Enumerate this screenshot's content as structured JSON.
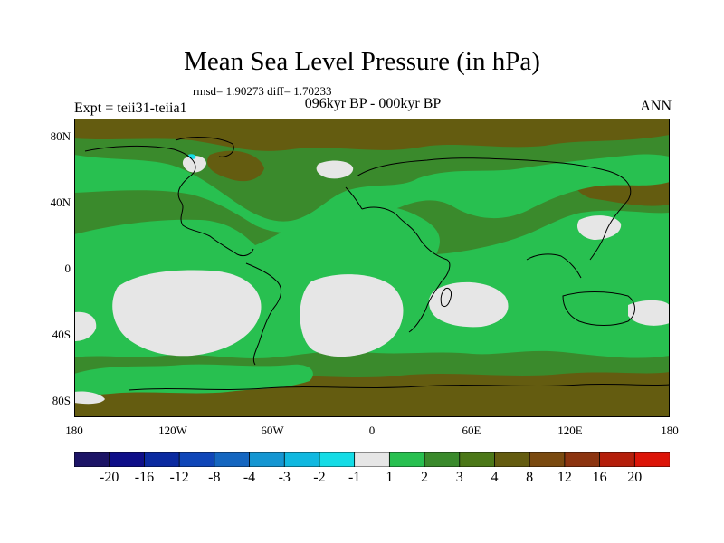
{
  "title": "Mean Sea Level Pressure (in hPa)",
  "stats": "rmsd= 1.90273 diff= 1.70233",
  "experiment": "Expt = teii31-teiia1",
  "period": "096kyr BP - 000kyr BP",
  "season": "ANN",
  "lat_ticks": [
    "80N",
    "40N",
    "0",
    "40S",
    "80S"
  ],
  "lon_ticks": [
    "180",
    "120W",
    "60W",
    "0",
    "60E",
    "120E",
    "180"
  ],
  "colorbar": {
    "labels": [
      "-20",
      "-16",
      "-12",
      "-8",
      "-4",
      "-3",
      "-2",
      "-1",
      "1",
      "2",
      "3",
      "4",
      "8",
      "12",
      "16",
      "20"
    ],
    "colors": [
      "#1c1466",
      "#0e0e88",
      "#0a2aa0",
      "#0f46b8",
      "#1466c0",
      "#1496d2",
      "#10b8e0",
      "#14dce6",
      "#e6e6e6",
      "#28c050",
      "#3a8a2c",
      "#4c7818",
      "#645c10",
      "#7a4a10",
      "#8c3410",
      "#b41e0a",
      "#dc1408"
    ]
  },
  "map_colors": {
    "grey": "#e6e6e6",
    "green": "#28c050",
    "olive": "#3a8a2c",
    "brown": "#645c10",
    "cyan": "#14dce6"
  }
}
